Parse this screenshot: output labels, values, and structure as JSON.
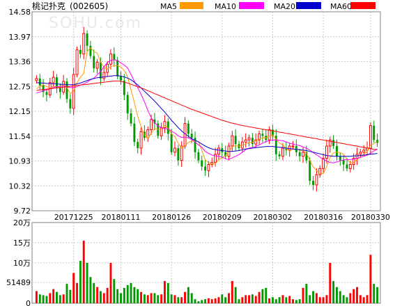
{
  "header": {
    "stock_name": "桃记扑克",
    "stock_code": "(002605)",
    "watermark": "SOHU.com"
  },
  "legend": [
    {
      "label": "MA5",
      "color": "#ff9900"
    },
    {
      "label": "MA10",
      "color": "#ff00ff"
    },
    {
      "label": "MA20",
      "color": "#0000cc"
    },
    {
      "label": "MA60",
      "color": "#ff0000"
    }
  ],
  "colors": {
    "up": "#ff0000",
    "down": "#009900",
    "grid": "#c8c8c8",
    "frame": "#808080"
  },
  "chart_data": {
    "type": "candlestick",
    "price_ylim": [
      9.72,
      14.58
    ],
    "price_ticks": [
      "14.58",
      "13.97",
      "13.36",
      "12.75",
      "12.15",
      "11.54",
      "10.93",
      "10.32",
      "9.72"
    ],
    "date_ticks": [
      {
        "label": "20171225",
        "index": 11
      },
      {
        "label": "20180111",
        "index": 25
      },
      {
        "label": "20180126",
        "index": 40
      },
      {
        "label": "20180209",
        "index": 55
      },
      {
        "label": "20180302",
        "index": 70
      },
      {
        "label": "20180316",
        "index": 85
      },
      {
        "label": "20180330",
        "index": 99
      }
    ],
    "volume_ylim": [
      0,
      200000
    ],
    "volume_ticks": [
      "20万",
      "15万",
      "10万",
      "51489",
      "0"
    ],
    "close": [
      12.95,
      12.78,
      12.62,
      12.55,
      12.85,
      12.98,
      12.72,
      12.62,
      12.88,
      12.45,
      12.22,
      13.05,
      13.65,
      13.55,
      14.05,
      13.75,
      13.5,
      13.2,
      13.35,
      12.95,
      13.1,
      13.3,
      13.55,
      13.4,
      13.0,
      12.9,
      12.55,
      12.1,
      11.85,
      11.4,
      11.25,
      11.65,
      11.5,
      11.7,
      11.95,
      11.85,
      11.55,
      11.75,
      11.9,
      11.6,
      11.15,
      11.25,
      10.95,
      11.3,
      11.85,
      11.6,
      11.5,
      11.15,
      10.95,
      10.8,
      10.7,
      10.85,
      10.9,
      11.1,
      11.25,
      11.15,
      11.05,
      11.3,
      11.55,
      11.35,
      11.25,
      11.4,
      11.45,
      11.5,
      11.35,
      11.45,
      11.6,
      11.55,
      11.45,
      11.7,
      11.55,
      11.1,
      11.05,
      11.25,
      11.2,
      11.3,
      11.3,
      11.15,
      11.05,
      11.15,
      10.95,
      10.45,
      10.35,
      10.6,
      10.75,
      11.0,
      11.3,
      11.45,
      11.3,
      11.05,
      10.95,
      10.85,
      10.75,
      10.85,
      11.0,
      11.1,
      11.15,
      11.2,
      11.25,
      11.8,
      11.45,
      11.38
    ],
    "volume": [
      30000,
      22000,
      20000,
      18000,
      25000,
      35000,
      28000,
      20000,
      22000,
      48000,
      33000,
      75000,
      50000,
      105000,
      155000,
      100000,
      65000,
      50000,
      40000,
      30000,
      25000,
      38000,
      100000,
      60000,
      35000,
      25000,
      38000,
      45000,
      50000,
      40000,
      35000,
      28000,
      22000,
      20000,
      25000,
      25000,
      20000,
      22000,
      55000,
      50000,
      22000,
      20000,
      15000,
      15000,
      28000,
      40000,
      25000,
      10000,
      5000,
      8000,
      10000,
      12000,
      10000,
      12000,
      15000,
      22000,
      15000,
      25000,
      55000,
      40000,
      10000,
      15000,
      20000,
      20000,
      22000,
      18000,
      28000,
      35000,
      38000,
      12000,
      15000,
      10000,
      15000,
      20000,
      15000,
      18000,
      10000,
      8000,
      10000,
      38000,
      48000,
      20000,
      30000,
      25000,
      15000,
      15000,
      20000,
      100000,
      55000,
      40000,
      30000,
      20000,
      15000,
      25000,
      35000,
      40000,
      20000,
      15000,
      20000,
      120000,
      48000,
      40000
    ],
    "ma5": [
      12.7,
      12.75,
      12.8,
      12.75,
      12.72,
      12.76,
      12.75,
      12.74,
      12.81,
      12.73,
      12.58,
      12.64,
      12.85,
      12.98,
      13.08,
      13.61,
      13.7,
      13.61,
      13.57,
      13.35,
      13.22,
      13.18,
      13.25,
      13.26,
      13.27,
      13.23,
      13.15,
      12.99,
      12.68,
      12.36,
      12.03,
      11.77,
      11.57,
      11.49,
      11.61,
      11.73,
      11.71,
      11.72,
      11.8,
      11.73,
      11.6,
      11.53,
      11.37,
      11.25,
      11.3,
      11.39,
      11.42,
      11.43,
      11.41,
      11.2,
      10.96,
      10.89,
      10.86,
      10.87,
      10.96,
      11.01,
      11.07,
      11.16,
      11.28,
      11.31,
      11.3,
      11.32,
      11.35,
      11.39,
      11.39,
      11.43,
      11.47,
      11.51,
      11.5,
      11.55,
      11.57,
      11.47,
      11.37,
      11.33,
      11.23,
      11.18,
      11.22,
      11.23,
      11.2,
      11.19,
      11.12,
      10.95,
      10.79,
      10.7,
      10.62,
      10.63,
      10.8,
      11.02,
      11.13,
      11.15,
      11.14,
      11.1,
      10.98,
      10.89,
      10.9,
      10.97,
      11.03,
      11.1,
      11.17,
      11.32,
      11.36,
      11.42
    ],
    "ma10": [
      12.6,
      12.62,
      12.65,
      12.67,
      12.7,
      12.73,
      12.75,
      12.76,
      12.77,
      12.75,
      12.73,
      12.73,
      12.75,
      12.79,
      12.82,
      12.86,
      12.92,
      12.96,
      13.04,
      13.12,
      13.24,
      13.34,
      13.39,
      13.41,
      13.39,
      13.33,
      13.28,
      13.21,
      13.05,
      12.88,
      12.73,
      12.56,
      12.38,
      12.17,
      11.99,
      11.88,
      11.79,
      11.75,
      11.72,
      11.72,
      11.66,
      11.62,
      11.55,
      11.51,
      11.52,
      11.5,
      11.46,
      11.4,
      11.33,
      11.27,
      11.17,
      11.12,
      11.08,
      11.06,
      11.05,
      11.03,
      10.99,
      10.97,
      11.01,
      11.05,
      11.09,
      11.15,
      11.21,
      11.25,
      11.27,
      11.29,
      11.33,
      11.37,
      11.41,
      11.43,
      11.45,
      11.45,
      11.44,
      11.43,
      11.4,
      11.37,
      11.35,
      11.33,
      11.31,
      11.28,
      11.25,
      11.2,
      11.14,
      11.09,
      11.03,
      10.98,
      10.93,
      10.9,
      10.89,
      10.91,
      10.94,
      10.96,
      10.97,
      10.97,
      10.98,
      11.0,
      11.02,
      11.05,
      11.08,
      11.13,
      11.18,
      11.23
    ],
    "ma20": [
      12.85,
      12.84,
      12.84,
      12.83,
      12.83,
      12.82,
      12.82,
      12.81,
      12.81,
      12.8,
      12.8,
      12.8,
      12.82,
      12.84,
      12.87,
      12.9,
      12.93,
      12.95,
      12.97,
      12.98,
      12.99,
      13.0,
      13.01,
      13.02,
      13.02,
      13.01,
      12.99,
      12.96,
      12.92,
      12.86,
      12.79,
      12.72,
      12.64,
      12.56,
      12.48,
      12.4,
      12.31,
      12.22,
      12.13,
      12.03,
      11.93,
      11.84,
      11.75,
      11.67,
      11.6,
      11.54,
      11.48,
      11.44,
      11.4,
      11.35,
      11.3,
      11.26,
      11.23,
      11.21,
      11.2,
      11.19,
      11.18,
      11.17,
      11.17,
      11.18,
      11.19,
      11.21,
      11.23,
      11.24,
      11.25,
      11.26,
      11.27,
      11.28,
      11.29,
      11.29,
      11.29,
      11.28,
      11.27,
      11.26,
      11.25,
      11.24,
      11.23,
      11.22,
      11.21,
      11.2,
      11.19,
      11.17,
      11.15,
      11.13,
      11.11,
      11.09,
      11.07,
      11.06,
      11.05,
      11.05,
      11.05,
      11.05,
      11.05,
      11.05,
      11.06,
      11.06,
      11.07,
      11.08,
      11.09,
      11.1,
      11.11,
      11.12
    ],
    "ma60": [
      12.66,
      12.67,
      12.68,
      12.69,
      12.7,
      12.71,
      12.72,
      12.73,
      12.74,
      12.75,
      12.76,
      12.77,
      12.78,
      12.79,
      12.8,
      12.81,
      12.82,
      12.83,
      12.84,
      12.85,
      12.86,
      12.87,
      12.88,
      12.89,
      12.89,
      12.88,
      12.86,
      12.84,
      12.81,
      12.78,
      12.75,
      12.72,
      12.69,
      12.65,
      12.62,
      12.58,
      12.55,
      12.51,
      12.48,
      12.44,
      12.41,
      12.37,
      12.34,
      12.3,
      12.27,
      12.23,
      12.2,
      12.17,
      12.14,
      12.11,
      12.08,
      12.05,
      12.02,
      11.99,
      11.96,
      11.93,
      11.91,
      11.88,
      11.86,
      11.84,
      11.82,
      11.8,
      11.79,
      11.77,
      11.76,
      11.74,
      11.73,
      11.71,
      11.7,
      11.69,
      11.67,
      11.66,
      11.64,
      11.63,
      11.61,
      11.6,
      11.58,
      11.57,
      11.55,
      11.54,
      11.52,
      11.51,
      11.49,
      11.48,
      11.46,
      11.45,
      11.43,
      11.42,
      11.4,
      11.39,
      11.37,
      11.36,
      11.34,
      11.33,
      11.31,
      11.3,
      11.28,
      11.27,
      11.25,
      11.24,
      11.22,
      11.21
    ]
  }
}
